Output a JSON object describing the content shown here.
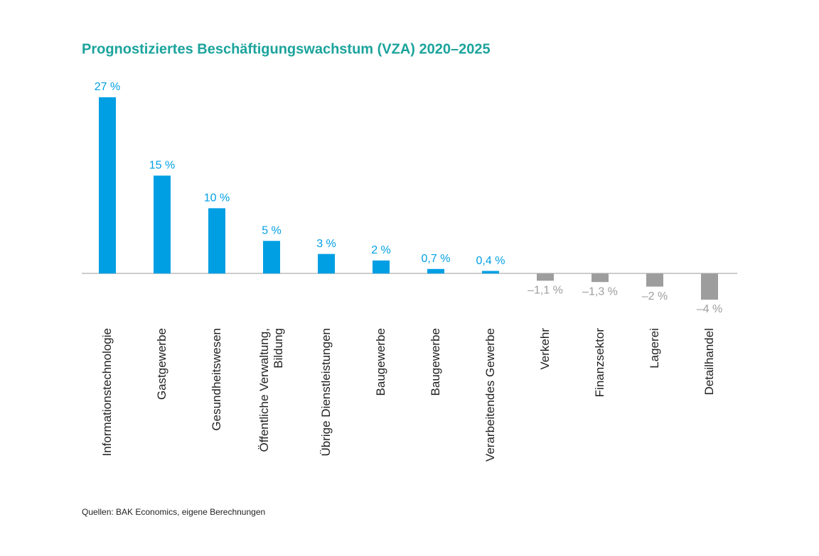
{
  "chart_data": {
    "type": "bar",
    "title": "Prognostiziertes Beschäftigungswachstum (VZA) 2020–2025",
    "categories": [
      "Informationstechnologie",
      "Gastgewerbe",
      "Gesundheitswesen",
      "Öffentliche Verwaltung,\nBildung",
      "Übrige Dienstleistungen",
      "Baugewerbe",
      "Baugewerbe",
      "Verarbeitendes Gewerbe",
      "Verkehr",
      "Finanzsektor",
      "Lagerei",
      "Detailhandel"
    ],
    "values": [
      27,
      15,
      10,
      5,
      3,
      2,
      0.7,
      0.4,
      -1.1,
      -1.3,
      -2,
      -4
    ],
    "value_labels": [
      "27 %",
      "15 %",
      "10 %",
      "5 %",
      "3 %",
      "2 %",
      "0,7 %",
      "0,4 %",
      "–1,1 %",
      "–1,3 %",
      "–2 %",
      "–4 %"
    ],
    "color": "#009fe3",
    "negative_color": "#9d9d9d",
    "ylim": [
      -4,
      27
    ],
    "source": "Quellen: BAK Economics, eigene Berechnungen"
  }
}
